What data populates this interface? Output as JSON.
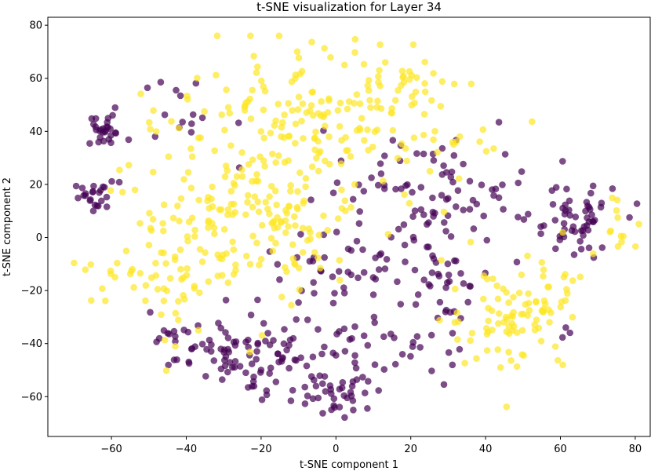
{
  "chart_data": {
    "type": "scatter",
    "title": "t-SNE visualization for Layer 34",
    "xlabel": "t-SNE component 1",
    "ylabel": "t-SNE component 2",
    "xlim": [
      -77,
      84
    ],
    "ylim": [
      -75,
      83
    ],
    "xticks": [
      -60,
      -40,
      -20,
      0,
      20,
      40,
      60,
      80
    ],
    "yticks": [
      -60,
      -40,
      -20,
      0,
      20,
      40,
      60,
      80
    ],
    "xtick_labels": [
      "−60",
      "−40",
      "−20",
      "0",
      "20",
      "40",
      "60",
      "80"
    ],
    "ytick_labels": [
      "−60",
      "−40",
      "−20",
      "0",
      "20",
      "40",
      "60",
      "80"
    ],
    "grid": false,
    "legend": "none",
    "marker_opacity": 0.7,
    "series": [
      {
        "color": "#440154",
        "clusters": [
          {
            "cx": -62,
            "cy": 40,
            "sx": 3,
            "sy": 3,
            "n": 28
          },
          {
            "cx": -64,
            "cy": 15,
            "sx": 3,
            "sy": 3,
            "n": 24
          },
          {
            "cx": -40,
            "cy": 48,
            "sx": 6,
            "sy": 6,
            "n": 14
          },
          {
            "cx": -30,
            "cy": -45,
            "sx": 7,
            "sy": 6,
            "n": 55
          },
          {
            "cx": -10,
            "cy": -45,
            "sx": 10,
            "sy": 8,
            "n": 45
          },
          {
            "cx": 2,
            "cy": -58,
            "sx": 6,
            "sy": 5,
            "n": 35
          },
          {
            "cx": 15,
            "cy": -40,
            "sx": 9,
            "sy": 8,
            "n": 30
          },
          {
            "cx": 0,
            "cy": -20,
            "sx": 15,
            "sy": 10,
            "n": 40
          },
          {
            "cx": 15,
            "cy": 5,
            "sx": 15,
            "sy": 13,
            "n": 70
          },
          {
            "cx": 30,
            "cy": 20,
            "sx": 12,
            "sy": 10,
            "n": 45
          },
          {
            "cx": 30,
            "cy": -15,
            "sx": 8,
            "sy": 5,
            "n": 20
          },
          {
            "cx": 63,
            "cy": 5,
            "sx": 6,
            "sy": 8,
            "n": 55
          },
          {
            "cx": 62,
            "cy": -35,
            "sx": 2,
            "sy": 2,
            "n": 3
          },
          {
            "cx": -45,
            "cy": -35,
            "sx": 5,
            "sy": 3,
            "n": 8
          }
        ]
      },
      {
        "color": "#fde725",
        "clusters": [
          {
            "cx": -30,
            "cy": 10,
            "sx": 13,
            "sy": 20,
            "n": 150
          },
          {
            "cx": -5,
            "cy": 40,
            "sx": 18,
            "sy": 15,
            "n": 150
          },
          {
            "cx": 15,
            "cy": 55,
            "sx": 10,
            "sy": 10,
            "n": 40
          },
          {
            "cx": -10,
            "cy": 0,
            "sx": 10,
            "sy": 10,
            "n": 40
          },
          {
            "cx": -45,
            "cy": -15,
            "sx": 8,
            "sy": 8,
            "n": 30
          },
          {
            "cx": 45,
            "cy": -30,
            "sx": 8,
            "sy": 10,
            "n": 70
          },
          {
            "cx": 58,
            "cy": -20,
            "sx": 8,
            "sy": 8,
            "n": 30
          },
          {
            "cx": 76,
            "cy": 3,
            "sx": 4,
            "sy": 5,
            "n": 12
          },
          {
            "cx": 40,
            "cy": 35,
            "sx": 5,
            "sy": 5,
            "n": 6
          },
          {
            "cx": -60,
            "cy": -10,
            "sx": 4,
            "sy": 6,
            "n": 8
          }
        ]
      }
    ]
  }
}
